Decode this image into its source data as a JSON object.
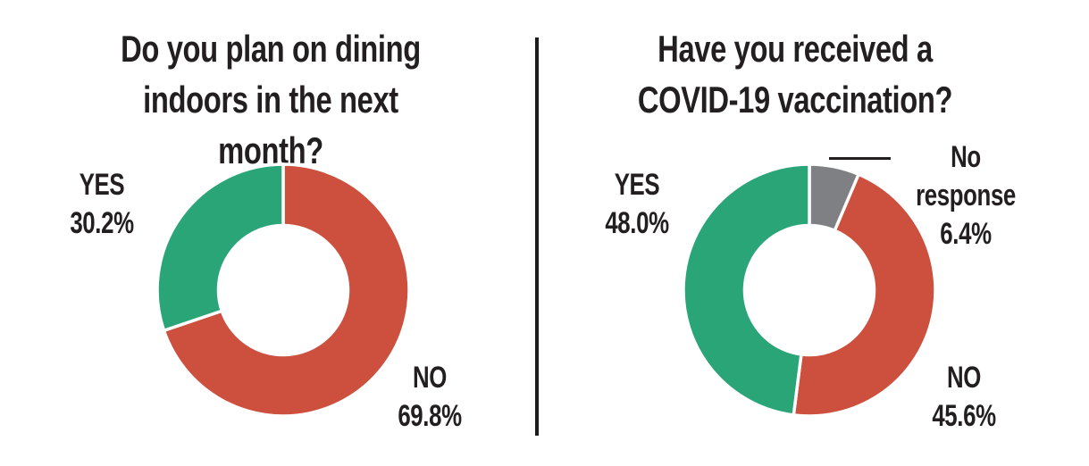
{
  "page": {
    "background_color": "#ffffff",
    "ink_color": "#231f20",
    "divider_color": "#1b1b1b"
  },
  "chart_data": [
    {
      "type": "pie",
      "subtype": "donut",
      "title": "Do you plan on dining\nindoors in the next month?",
      "direction": "clockwise",
      "start_angle_deg": 0,
      "legend_position": "labels-outside",
      "slices": [
        {
          "label": "NO",
          "value": 69.8,
          "color": "#cd4f3e",
          "display": "NO\n69.8%"
        },
        {
          "label": "YES",
          "value": 30.2,
          "color": "#2aa578",
          "display": "YES\n30.2%"
        }
      ]
    },
    {
      "type": "pie",
      "subtype": "donut",
      "title": "Have you received a\nCOVID-19 vaccination?",
      "direction": "clockwise",
      "start_angle_deg": 0,
      "legend_position": "labels-outside",
      "slices": [
        {
          "label": "No response",
          "value": 6.4,
          "color": "#7f8083",
          "display": "No response\n6.4%",
          "callout": true
        },
        {
          "label": "NO",
          "value": 45.6,
          "color": "#cd4f3e",
          "display": "NO\n45.6%"
        },
        {
          "label": "YES",
          "value": 48.0,
          "color": "#2aa578",
          "display": "YES\n48.0%"
        }
      ]
    }
  ]
}
